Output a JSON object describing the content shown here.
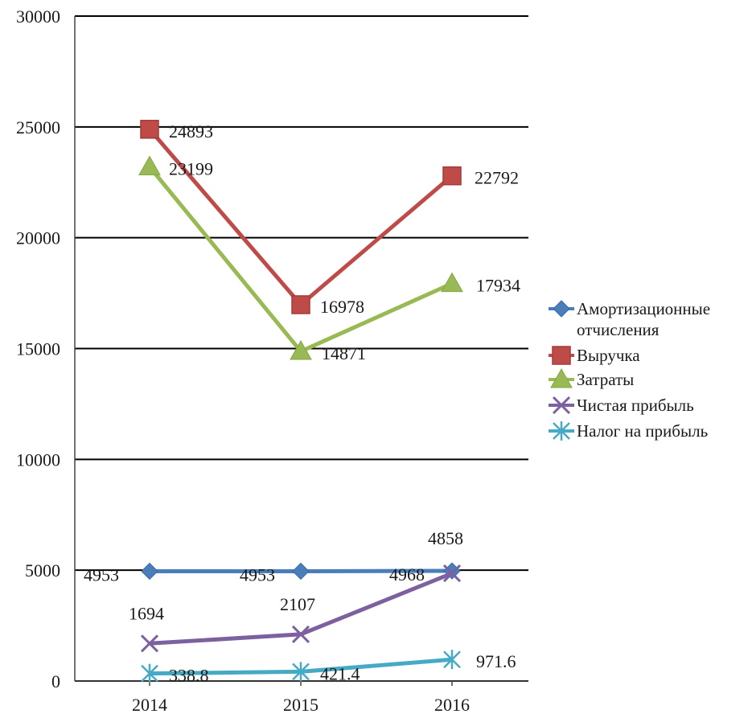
{
  "chart_data": {
    "type": "line",
    "title": "",
    "xlabel": "",
    "ylabel": "",
    "categories": [
      "2014",
      "2015",
      "2016"
    ],
    "ylim": [
      0,
      30000
    ],
    "yticks": [
      "0",
      "5000",
      "10000",
      "15000",
      "20000",
      "25000",
      "30000"
    ],
    "grid": true,
    "legend_position": "right",
    "series": [
      {
        "name": "Амортизационные отчисления",
        "name_lines": [
          "Амортизационные",
          "отчисления"
        ],
        "marker": "diamond",
        "color": "#4a7ebb",
        "values": [
          4953,
          4953,
          4968
        ],
        "labels": [
          "4953",
          "4953",
          "4968"
        ]
      },
      {
        "name": "Выручка",
        "name_lines": [
          "Выручка"
        ],
        "marker": "square",
        "color": "#be4b48",
        "values": [
          24893,
          16978,
          22792
        ],
        "labels": [
          "24893",
          "16978",
          "22792"
        ]
      },
      {
        "name": "Затраты",
        "name_lines": [
          "Затраты"
        ],
        "marker": "triangle",
        "color": "#98b954",
        "values": [
          23199,
          14871,
          17934
        ],
        "labels": [
          "23199",
          "14871",
          "17934"
        ]
      },
      {
        "name": "Чистая прибыль",
        "name_lines": [
          "Чистая прибыль"
        ],
        "marker": "x",
        "color": "#7d60a0",
        "values": [
          1694,
          2107,
          4858
        ],
        "labels": [
          "1694",
          "2107",
          "4858"
        ]
      },
      {
        "name": "Налог на прибыль",
        "name_lines": [
          "Налог на прибыль"
        ],
        "marker": "star",
        "color": "#46aac5",
        "values": [
          338.8,
          421.4,
          971.6
        ],
        "labels": [
          "338.8",
          "421.4",
          "971.6"
        ]
      }
    ]
  }
}
